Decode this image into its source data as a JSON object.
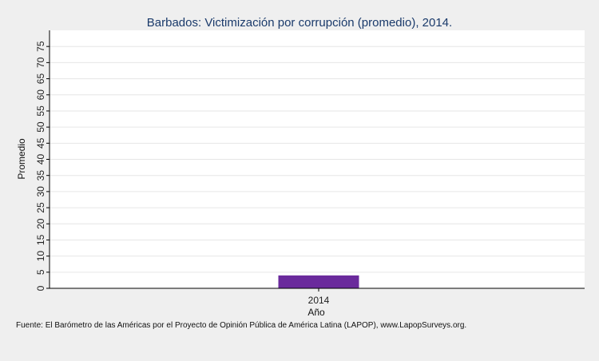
{
  "chart_data": {
    "type": "bar",
    "title": "Barbados: Victimización por corrupción (promedio), 2014.",
    "xlabel": "Año",
    "ylabel": "Promedio",
    "categories": [
      "2014"
    ],
    "values": [
      4
    ],
    "ylim": [
      0,
      80
    ],
    "yticks": [
      "0",
      "5",
      "10",
      "15",
      "20",
      "25",
      "30",
      "35",
      "40",
      "45",
      "50",
      "55",
      "60",
      "65",
      "70",
      "75"
    ],
    "grid": true,
    "bar_color": "#6a2a9c",
    "source": "Fuente: El Barómetro de las Américas por el Proyecto de Opinión Pública de América Latina (LAPOP), www.LapopSurveys.org."
  }
}
